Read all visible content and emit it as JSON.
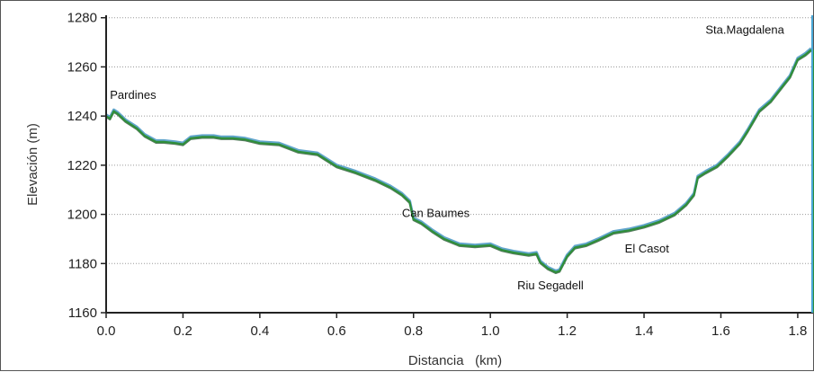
{
  "chart_data": {
    "type": "area",
    "xlabel": "Distancia   (km)",
    "ylabel": "Elevación (m)",
    "xlim": [
      0.0,
      1.84
    ],
    "ylim": [
      1160,
      1281
    ],
    "xticks": [
      "0.0",
      "0.2",
      "0.4",
      "0.6",
      "0.8",
      "1.0",
      "1.2",
      "1.4",
      "1.6",
      "1.8"
    ],
    "xtick_values": [
      0.0,
      0.2,
      0.4,
      0.6,
      0.8,
      1.0,
      1.2,
      1.4,
      1.6,
      1.8
    ],
    "yticks": [
      "1160",
      "1180",
      "1200",
      "1220",
      "1240",
      "1260",
      "1280"
    ],
    "ytick_values": [
      1160,
      1180,
      1200,
      1220,
      1240,
      1260,
      1280
    ],
    "grid": true,
    "line_color": "#2f8f3a",
    "shadow_color": "#3a8fbf",
    "end_bar_colors": [
      "#2f8f3a",
      "#4aa8d8"
    ],
    "series": [
      {
        "x": [
          0.0,
          0.01,
          0.02,
          0.03,
          0.05,
          0.08,
          0.1,
          0.13,
          0.15,
          0.18,
          0.2,
          0.22,
          0.25,
          0.28,
          0.3,
          0.33,
          0.36,
          0.4,
          0.45,
          0.5,
          0.55,
          0.6,
          0.65,
          0.7,
          0.74,
          0.77,
          0.79,
          0.8,
          0.82,
          0.85,
          0.88,
          0.92,
          0.96,
          1.0,
          1.03,
          1.06,
          1.1,
          1.12,
          1.13,
          1.15,
          1.17,
          1.18,
          1.2,
          1.22,
          1.25,
          1.28,
          1.32,
          1.36,
          1.4,
          1.44,
          1.48,
          1.51,
          1.53,
          1.54,
          1.56,
          1.59,
          1.62,
          1.65,
          1.67,
          1.7,
          1.73,
          1.76,
          1.78,
          1.8,
          1.82,
          1.835
        ],
        "y": [
          1240,
          1239,
          1242,
          1241,
          1238,
          1235,
          1232,
          1229.5,
          1229.5,
          1229,
          1228.5,
          1231,
          1231.5,
          1231.5,
          1231,
          1231,
          1230.5,
          1229,
          1228.5,
          1225.5,
          1224.5,
          1219.5,
          1217,
          1214,
          1211,
          1208,
          1205,
          1198,
          1196.5,
          1193,
          1190,
          1187.5,
          1187,
          1187.5,
          1185.5,
          1184.5,
          1183.5,
          1184,
          1180.5,
          1178,
          1176.5,
          1177,
          1183,
          1186.5,
          1187.5,
          1189.5,
          1192.5,
          1193.5,
          1195,
          1197,
          1200,
          1204,
          1208,
          1215,
          1217,
          1219.5,
          1224,
          1229,
          1234,
          1242,
          1246,
          1252,
          1256,
          1263,
          1265,
          1267
        ]
      }
    ],
    "annotations": [
      {
        "text": "Pardines",
        "x": 0.01,
        "y": 1247
      },
      {
        "text": "Can Baumes",
        "x": 0.77,
        "y": 1199
      },
      {
        "text": "El Casot",
        "x": 1.35,
        "y": 1184.5
      },
      {
        "text": "Riu Segadell",
        "x": 1.07,
        "y": 1169.5
      },
      {
        "text": "Sta.Magdalena",
        "x": 1.56,
        "y": 1273.5
      }
    ]
  }
}
